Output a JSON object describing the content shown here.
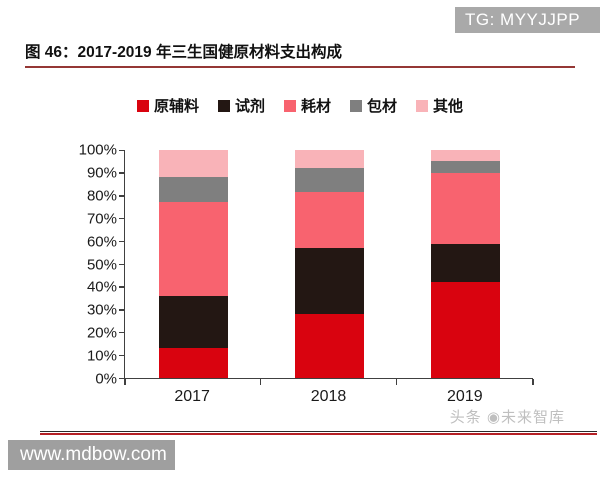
{
  "badge_top": "TG: MYYJJPP",
  "title": "图 46：2017-2019 年三生国健原材料支出构成",
  "watermark": "头条 ◉未来智库",
  "badge_bottom": "www.mdbow.com",
  "colors": {
    "title_underline": "#953735",
    "footer_line_red": "#b52025",
    "badge_gray": "#a9a9a9",
    "axis": "#404040"
  },
  "chart_data": {
    "type": "bar",
    "stacked": true,
    "title": "2017-2019 年三生国健原材料支出构成",
    "categories": [
      "2017",
      "2018",
      "2019"
    ],
    "series": [
      {
        "name": "原辅料",
        "color": "#d9030f",
        "values": [
          13,
          28,
          42
        ]
      },
      {
        "name": "试剂",
        "color": "#231713",
        "values": [
          23,
          29,
          17
        ]
      },
      {
        "name": "耗材",
        "color": "#f8636f",
        "values": [
          41,
          24.5,
          31
        ]
      },
      {
        "name": "包材",
        "color": "#7f7f7f",
        "values": [
          11,
          10.5,
          5
        ]
      },
      {
        "name": "其他",
        "color": "#f9b3b8",
        "values": [
          12,
          8,
          5
        ]
      }
    ],
    "xlabel": "",
    "ylabel": "",
    "ylim": [
      0,
      100
    ],
    "y_ticks": [
      "0%",
      "10%",
      "20%",
      "30%",
      "40%",
      "50%",
      "60%",
      "70%",
      "80%",
      "90%",
      "100%"
    ],
    "legend_position": "top",
    "grid": false
  }
}
